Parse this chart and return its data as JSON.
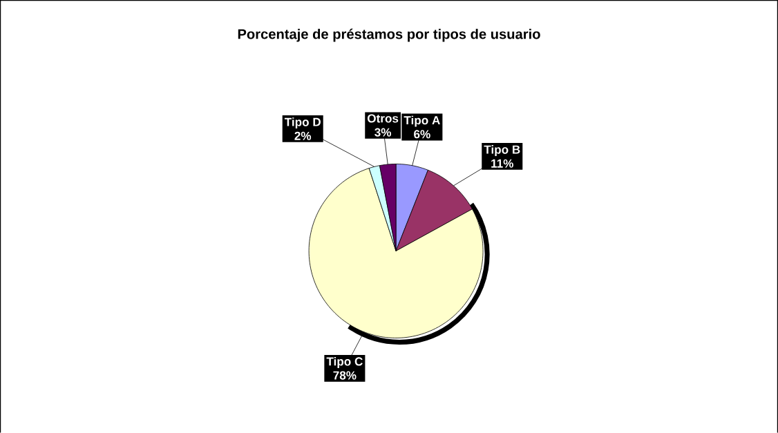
{
  "chart_data": {
    "type": "pie",
    "title": "Porcentaje de préstamos por tipos de usuario",
    "categories": [
      "Tipo A",
      "Tipo B",
      "Tipo C",
      "Tipo D",
      "Otros"
    ],
    "values": [
      6,
      11,
      78,
      2,
      3
    ],
    "value_labels": [
      "6%",
      "11%",
      "78%",
      "2%",
      "3%"
    ],
    "colors": [
      "#9999ff",
      "#993366",
      "#ffffcc",
      "#ccffff",
      "#660066"
    ]
  }
}
